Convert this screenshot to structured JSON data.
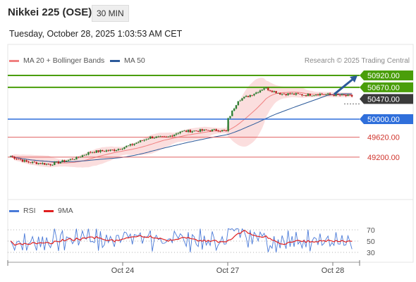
{
  "header": {
    "title": "Nikkei 225 (OSE)",
    "timeframe": "30 MIN",
    "timestamp": "Tuesday, October 28, 2025 1:03:53 AM CET",
    "credit": "Research © 2025 Trading Central"
  },
  "legend": {
    "bollinger": "MA 20 + Bollinger Bands",
    "ma50": "MA 50",
    "rsi": "RSI",
    "rsi_ma": "9MA"
  },
  "colors": {
    "bollinger": "#f08080",
    "ma50": "#2c5a9a",
    "rsi": "#4a7ad8",
    "rsi_ma": "#e02020",
    "resistance": "#4a9e0a",
    "support_major": "#2f6fdb",
    "support_minor": "#e06060",
    "last": "#3a3a3a",
    "bull": "#2e7d32",
    "bear": "#b71c1c"
  },
  "chart_data": [
    {
      "type": "candlestick",
      "ylim": [
        48880,
        51150
      ],
      "x_ticks": [
        "Oct 24",
        "Oct 27",
        "Oct 28"
      ],
      "levels": [
        {
          "label": "50920.00",
          "value": 50920,
          "kind": "resistance"
        },
        {
          "label": "50670.00",
          "value": 50670,
          "kind": "resistance"
        },
        {
          "label": "50470.00",
          "value": 50470,
          "kind": "last"
        },
        {
          "label": "50000.00",
          "value": 50000,
          "kind": "support_major"
        },
        {
          "label": "49620.00",
          "value": 49620,
          "kind": "support_minor"
        },
        {
          "label": "49200.00",
          "value": 49200,
          "kind": "support_minor"
        }
      ],
      "forecast": {
        "from": 50480,
        "to": 50920
      }
    },
    {
      "type": "line",
      "name": "RSI",
      "ylim": [
        20,
        80
      ],
      "y_ticks": [
        70,
        50,
        30
      ]
    }
  ]
}
